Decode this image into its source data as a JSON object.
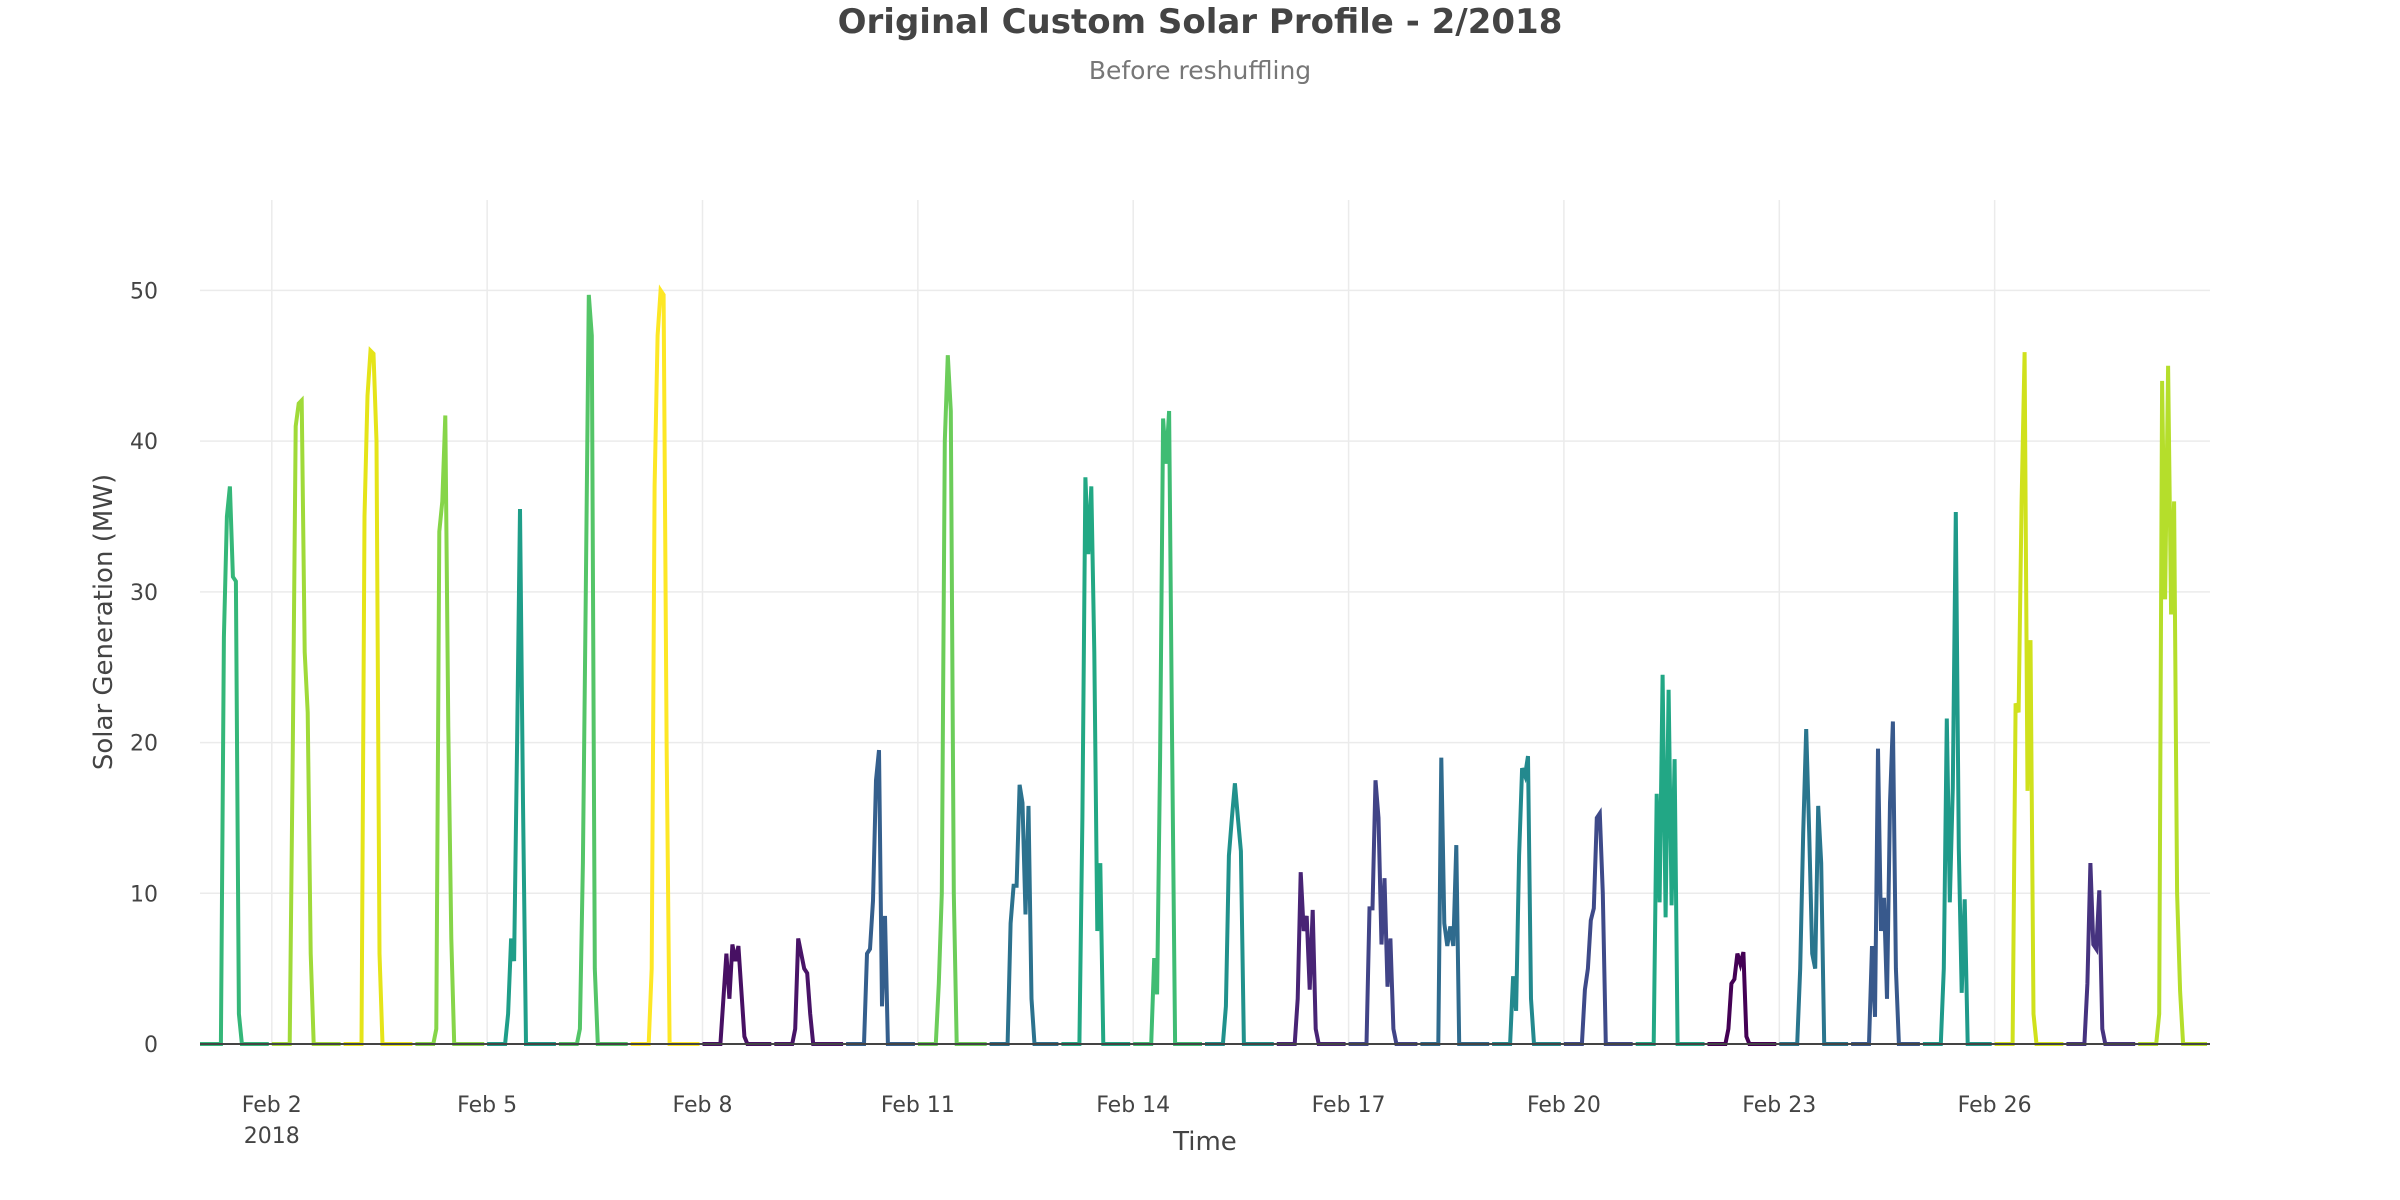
{
  "chart_data": {
    "type": "line",
    "title": "Original Custom Solar Profile - 2/2018",
    "subtitle": "Before reshuffling",
    "xlabel": "Time",
    "ylabel": "Solar Generation (MW)",
    "xlim": [
      "2018-02-01",
      "2018-03-01"
    ],
    "ylim": [
      0,
      56
    ],
    "yticks": [
      0,
      10,
      20,
      30,
      40,
      50
    ],
    "xticks": [
      {
        "date": "2018-02-02",
        "label": "Feb 2",
        "sublabel": "2018"
      },
      {
        "date": "2018-02-05",
        "label": "Feb 5"
      },
      {
        "date": "2018-02-08",
        "label": "Feb 8"
      },
      {
        "date": "2018-02-11",
        "label": "Feb 11"
      },
      {
        "date": "2018-02-14",
        "label": "Feb 14"
      },
      {
        "date": "2018-02-17",
        "label": "Feb 17"
      },
      {
        "date": "2018-02-20",
        "label": "Feb 20"
      },
      {
        "date": "2018-02-23",
        "label": "Feb 23"
      },
      {
        "date": "2018-02-26",
        "label": "Feb 26"
      }
    ],
    "grid": true,
    "legend": "none",
    "resolution": "hourly",
    "series": [
      {
        "date": "2018-02-01",
        "color": "#35b779",
        "start_hour": 7,
        "values": [
          0,
          27,
          35,
          37,
          31,
          30.7,
          2,
          0
        ]
      },
      {
        "date": "2018-02-02",
        "color": "#a0da39",
        "start_hour": 7,
        "values": [
          19,
          41,
          42.5,
          42.7,
          26,
          22,
          6,
          0
        ]
      },
      {
        "date": "2018-02-03",
        "color": "#e5e419",
        "start_hour": 7,
        "values": [
          35,
          43,
          46,
          45.8,
          40,
          6,
          0
        ]
      },
      {
        "date": "2018-02-04",
        "color": "#86d549",
        "start_hour": 7,
        "values": [
          1,
          34,
          36,
          41.7,
          21,
          7,
          0
        ]
      },
      {
        "date": "2018-02-05",
        "color": "#1f9e89",
        "start_hour": 7,
        "values": [
          2,
          7,
          5.5,
          20,
          35.5,
          16,
          0
        ]
      },
      {
        "date": "2018-02-06",
        "color": "#54c568",
        "start_hour": 7,
        "values": [
          1,
          12,
          30,
          49.7,
          47,
          5,
          0
        ]
      },
      {
        "date": "2018-02-07",
        "color": "#fde725",
        "start_hour": 7,
        "values": [
          5,
          37,
          47,
          50,
          49.7,
          20,
          0
        ]
      },
      {
        "date": "2018-02-08",
        "color": "#471063",
        "start_hour": 7,
        "values": [
          3,
          6,
          3,
          6.6,
          5.5,
          6.5,
          3.5,
          0.5,
          0
        ]
      },
      {
        "date": "2018-02-09",
        "color": "#481467",
        "start_hour": 7,
        "values": [
          1,
          7,
          6,
          5,
          4.7,
          2,
          0
        ]
      },
      {
        "date": "2018-02-10",
        "color": "#355f8d",
        "start_hour": 7,
        "values": [
          6,
          6.3,
          9.5,
          17.5,
          19.5,
          2.5,
          8.5,
          0
        ]
      },
      {
        "date": "2018-02-11",
        "color": "#6ccd5a",
        "start_hour": 7,
        "values": [
          4,
          10,
          40,
          45.7,
          42,
          10,
          0
        ]
      },
      {
        "date": "2018-02-12",
        "color": "#2c728e",
        "start_hour": 7,
        "values": [
          8,
          10.5,
          10.5,
          17.2,
          16,
          8.6,
          15.8,
          3,
          0
        ]
      },
      {
        "date": "2018-02-13",
        "color": "#22a884",
        "start_hour": 7,
        "values": [
          15,
          37.6,
          32.5,
          37,
          26,
          7.5,
          12,
          0
        ]
      },
      {
        "date": "2018-02-14",
        "color": "#3fbc73",
        "start_hour": 7,
        "values": [
          5.7,
          3.3,
          19,
          41.5,
          38.5,
          42,
          20,
          0
        ]
      },
      {
        "date": "2018-02-15",
        "color": "#21918c",
        "start_hour": 7,
        "values": [
          2.5,
          12.5,
          15,
          17.3,
          15,
          12.8,
          0
        ]
      },
      {
        "date": "2018-02-16",
        "color": "#482475",
        "start_hour": 7,
        "values": [
          3,
          11.4,
          7.5,
          8.5,
          3.6,
          8.9,
          1,
          0
        ]
      },
      {
        "date": "2018-02-17",
        "color": "#414487",
        "start_hour": 7,
        "values": [
          9,
          9,
          17.5,
          15,
          6.6,
          11,
          3.8,
          7,
          1,
          0
        ]
      },
      {
        "date": "2018-02-18",
        "color": "#2f6b8e",
        "start_hour": 7,
        "values": [
          19,
          8,
          6.5,
          7.8,
          6.5,
          13.2,
          0
        ]
      },
      {
        "date": "2018-02-19",
        "color": "#23898e",
        "start_hour": 7,
        "values": [
          4.5,
          2.2,
          12.5,
          18.3,
          17.8,
          19.1,
          3,
          0
        ]
      },
      {
        "date": "2018-02-20",
        "color": "#3e4a89",
        "start_hour": 7,
        "values": [
          3.6,
          5,
          8.2,
          9,
          15,
          15.3,
          10,
          0
        ]
      },
      {
        "date": "2018-02-21",
        "color": "#22a785",
        "start_hour": 7,
        "values": [
          16.6,
          9.4,
          24.5,
          8.4,
          23.5,
          9.2,
          18.9,
          0
        ]
      },
      {
        "date": "2018-02-22",
        "color": "#440154",
        "start_hour": 7,
        "values": [
          1,
          4,
          4.3,
          6,
          5.3,
          6.1,
          0.5,
          0
        ]
      },
      {
        "date": "2018-02-23",
        "color": "#2a768e",
        "start_hour": 7,
        "values": [
          5,
          14,
          20.9,
          14,
          6,
          5,
          15.8,
          12,
          0
        ]
      },
      {
        "date": "2018-02-24",
        "color": "#38598c",
        "start_hour": 7,
        "values": [
          6.5,
          1.8,
          19.6,
          7.5,
          9.7,
          3,
          16,
          21.4,
          5,
          0
        ]
      },
      {
        "date": "2018-02-25",
        "color": "#1f9a8a",
        "start_hour": 7,
        "values": [
          5,
          21.6,
          9.4,
          17,
          35.3,
          13,
          3.4,
          9.6,
          0
        ]
      },
      {
        "date": "2018-02-26",
        "color": "#d0e11c",
        "start_hour": 7,
        "values": [
          22.6,
          22,
          36,
          45.9,
          16.8,
          26.8,
          2,
          0
        ]
      },
      {
        "date": "2018-02-27",
        "color": "#46337f",
        "start_hour": 7,
        "values": [
          4,
          12,
          6.6,
          6.3,
          10.2,
          1,
          0
        ]
      },
      {
        "date": "2018-02-28",
        "color": "#b5de2b",
        "start_hour": 7,
        "values": [
          2,
          44,
          29.5,
          45,
          28.5,
          36,
          10,
          3.5,
          0
        ]
      }
    ]
  }
}
